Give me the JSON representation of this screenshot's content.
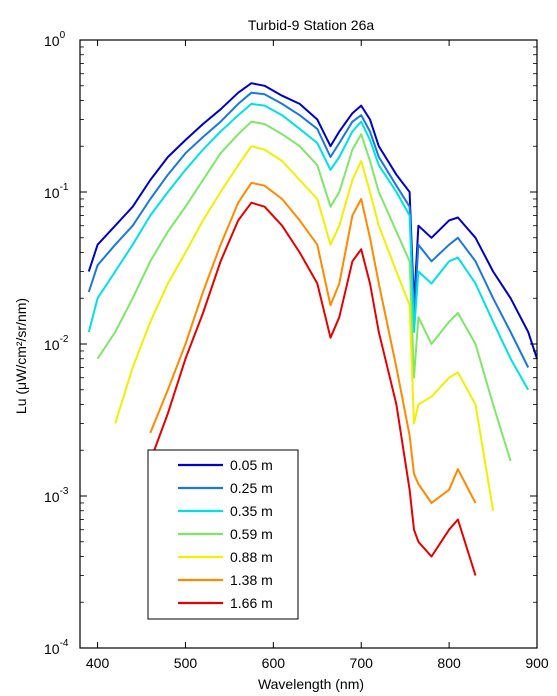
{
  "chart_data": {
    "type": "line",
    "title": "Turbid-9 Station 26a",
    "xlabel": "Wavelength (nm)",
    "ylabel": "Lu (μW/cm²/sr/nm)",
    "xlim": [
      380,
      900
    ],
    "ylim": [
      0.0001,
      1
    ],
    "yscale": "log",
    "grid": false,
    "legend_position": "bottom-left",
    "x_ticks": [
      "400",
      "500",
      "600",
      "700",
      "800",
      "900"
    ],
    "y_ticks": [
      {
        "base": "10",
        "exp": "0"
      },
      {
        "base": "10",
        "exp": "-1"
      },
      {
        "base": "10",
        "exp": "-2"
      },
      {
        "base": "10",
        "exp": "-3"
      },
      {
        "base": "10",
        "exp": "-4"
      }
    ],
    "x": [
      390,
      400,
      420,
      440,
      460,
      480,
      500,
      520,
      540,
      560,
      575,
      590,
      610,
      630,
      650,
      665,
      675,
      690,
      700,
      710,
      720,
      740,
      755,
      760,
      765,
      780,
      800,
      810,
      830,
      850,
      870,
      890,
      900
    ],
    "series": [
      {
        "name": "0.05 m",
        "color": "#0000c8",
        "values": [
          0.03,
          0.045,
          0.06,
          0.08,
          0.12,
          0.17,
          0.22,
          0.28,
          0.35,
          0.45,
          0.52,
          0.5,
          0.43,
          0.38,
          0.3,
          0.2,
          0.25,
          0.33,
          0.37,
          0.3,
          0.2,
          0.13,
          0.1,
          0.018,
          0.06,
          0.05,
          0.065,
          0.068,
          0.05,
          0.03,
          0.02,
          0.012,
          0.008
        ]
      },
      {
        "name": "0.25 m",
        "color": "#1a78dc",
        "values": [
          0.022,
          0.033,
          0.045,
          0.06,
          0.09,
          0.13,
          0.18,
          0.23,
          0.29,
          0.38,
          0.45,
          0.44,
          0.38,
          0.32,
          0.26,
          0.17,
          0.21,
          0.29,
          0.32,
          0.25,
          0.17,
          0.11,
          0.08,
          0.015,
          0.045,
          0.035,
          0.045,
          0.05,
          0.035,
          0.02,
          0.012,
          0.007,
          null
        ]
      },
      {
        "name": "0.35 m",
        "color": "#00e0e6",
        "values": [
          0.012,
          0.02,
          0.03,
          0.045,
          0.07,
          0.1,
          0.14,
          0.19,
          0.25,
          0.32,
          0.38,
          0.37,
          0.32,
          0.26,
          0.21,
          0.14,
          0.17,
          0.25,
          0.29,
          0.22,
          0.15,
          0.1,
          0.07,
          0.012,
          0.03,
          0.025,
          0.035,
          0.037,
          0.025,
          0.014,
          0.008,
          0.005,
          null
        ]
      },
      {
        "name": "0.59 m",
        "color": "#7fe66a",
        "values": [
          null,
          0.008,
          0.012,
          0.02,
          0.035,
          0.055,
          0.08,
          0.12,
          0.18,
          0.24,
          0.29,
          0.28,
          0.24,
          0.2,
          0.15,
          0.08,
          0.1,
          0.19,
          0.24,
          0.16,
          0.1,
          0.055,
          0.035,
          0.006,
          0.015,
          0.01,
          0.014,
          0.016,
          0.01,
          0.004,
          0.0017,
          null,
          null
        ]
      },
      {
        "name": "0.88 m",
        "color": "#f0f000",
        "values": [
          null,
          null,
          0.003,
          0.007,
          0.014,
          0.025,
          0.04,
          0.065,
          0.1,
          0.15,
          0.2,
          0.19,
          0.16,
          0.12,
          0.09,
          0.045,
          0.06,
          0.12,
          0.16,
          0.1,
          0.06,
          0.03,
          0.018,
          0.003,
          0.004,
          0.0045,
          0.006,
          0.0065,
          0.004,
          0.0008,
          null,
          null,
          null
        ]
      },
      {
        "name": "1.38 m",
        "color": "#ff8a00",
        "values": [
          null,
          null,
          null,
          null,
          0.0026,
          0.005,
          0.01,
          0.022,
          0.045,
          0.085,
          0.115,
          0.11,
          0.09,
          0.065,
          0.045,
          0.018,
          0.025,
          0.07,
          0.09,
          0.05,
          0.025,
          0.007,
          0.0025,
          0.0014,
          0.0012,
          0.0009,
          0.0011,
          0.0015,
          0.0009,
          null,
          null,
          null,
          null
        ]
      },
      {
        "name": "1.66 m",
        "color": "#e60000",
        "values": [
          null,
          null,
          null,
          null,
          0.0017,
          0.0035,
          0.008,
          0.016,
          0.035,
          0.065,
          0.085,
          0.08,
          0.06,
          0.04,
          0.025,
          0.011,
          0.015,
          0.035,
          0.042,
          0.025,
          0.012,
          0.004,
          0.0011,
          0.0006,
          0.0005,
          0.0004,
          0.0006,
          0.0007,
          0.0003,
          null,
          null,
          null,
          null
        ]
      }
    ]
  }
}
